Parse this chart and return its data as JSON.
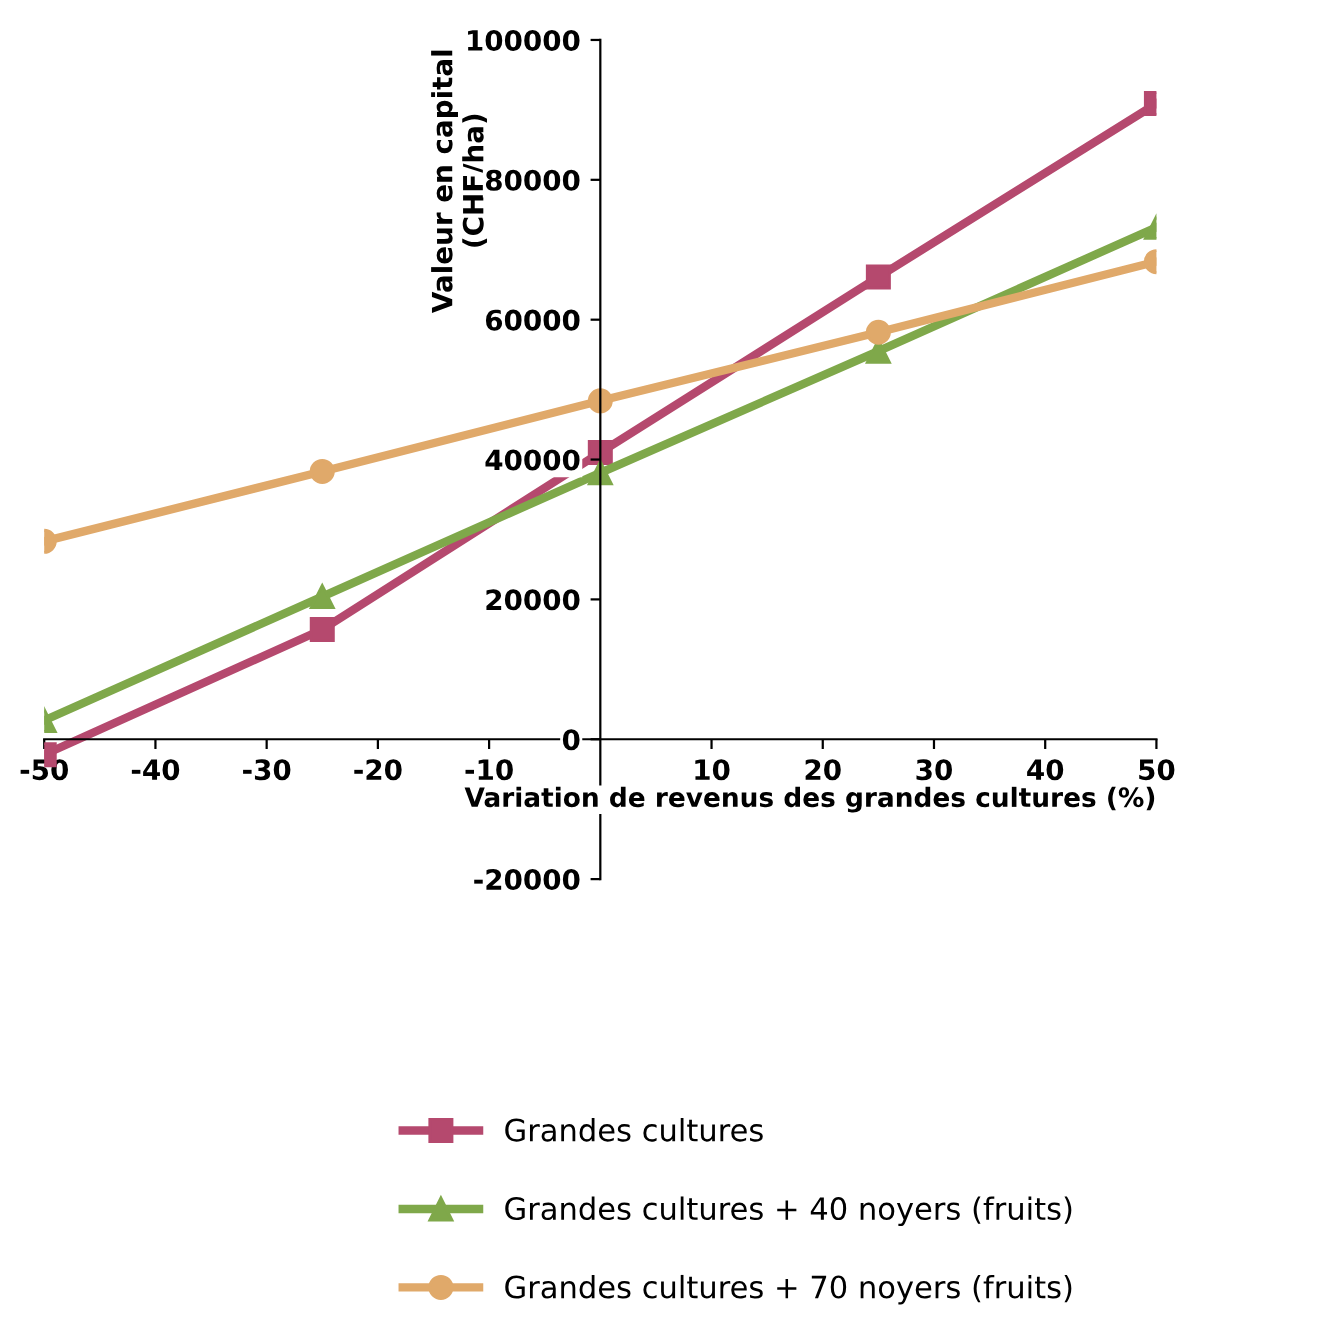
{
  "chart_data": {
    "type": "line",
    "xlabel": "Variation de revenus des grandes cultures (%)",
    "ylabel": "Valeur en capital\n(CHF/ha)",
    "x": [
      -50,
      -25,
      0,
      25,
      50
    ],
    "series": [
      {
        "name": "Grandes cultures",
        "color": "#b5496e",
        "marker": "square",
        "values": [
          -2200,
          15700,
          41000,
          66100,
          90900
        ]
      },
      {
        "name": "Grandes cultures + 40 noyers (fruits)",
        "color": "#7fa84a",
        "marker": "triangle",
        "values": [
          2700,
          20400,
          38100,
          55500,
          73200
        ]
      },
      {
        "name": "Grandes cultures + 70 noyers (fruits)",
        "color": "#e0a96a",
        "marker": "circle",
        "values": [
          28300,
          38300,
          48400,
          58200,
          68300
        ]
      }
    ],
    "xlim": [
      -50,
      50
    ],
    "xticks": [
      -50,
      -40,
      -30,
      -20,
      -10,
      10,
      20,
      30,
      40,
      50
    ],
    "ylim": [
      -20000,
      100000
    ],
    "yticks": [
      -20000,
      0,
      20000,
      40000,
      60000,
      80000,
      100000
    ],
    "grid": false,
    "legend": "bottom",
    "line_style": "solid"
  }
}
